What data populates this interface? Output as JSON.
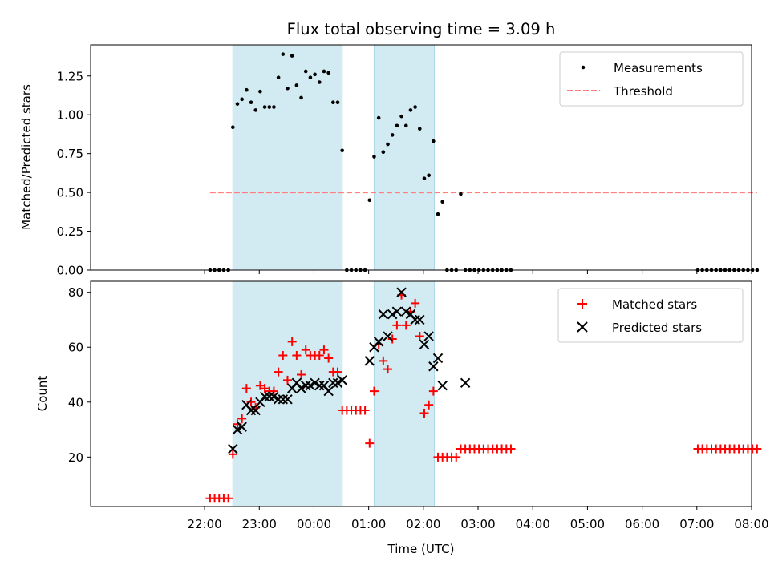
{
  "title": "Flux total observing time = 3.09 h",
  "colors": {
    "band": "#add8e6",
    "matched": "#ff0000",
    "predicted": "#000000",
    "threshold": "#ff7f7f",
    "dots": "#000000"
  },
  "chart_data": [
    {
      "type": "scatter",
      "panel": "top",
      "ylabel": "Matched/Predicted stars",
      "xlabel": "",
      "ylim": [
        0,
        1.45
      ],
      "yticks": [
        0.0,
        0.25,
        0.5,
        0.75,
        1.0,
        1.25
      ],
      "ytick_labels": [
        "0.00",
        "0.25",
        "0.50",
        "0.75",
        "1.00",
        "1.25"
      ],
      "legend": {
        "placement": "top-right",
        "entries": [
          "Measurements",
          "Threshold"
        ]
      },
      "bands": [
        [
          "22:31",
          "00:31"
        ],
        [
          "01:06",
          "02:12"
        ]
      ],
      "threshold": {
        "name": "Threshold",
        "value": 0.5,
        "x_range": [
          "22:06",
          "08:06"
        ]
      },
      "series": [
        {
          "name": "Measurements",
          "x": [
            "22:06",
            "22:11",
            "22:16",
            "22:21",
            "22:26",
            "22:31",
            "22:36",
            "22:41",
            "22:46",
            "22:51",
            "22:56",
            "23:01",
            "23:06",
            "23:11",
            "23:16",
            "23:21",
            "23:26",
            "23:31",
            "23:36",
            "23:41",
            "23:46",
            "23:51",
            "23:56",
            "00:01",
            "00:06",
            "00:11",
            "00:16",
            "00:21",
            "00:26",
            "00:31",
            "00:36",
            "00:41",
            "00:46",
            "00:51",
            "00:56",
            "01:01",
            "01:06",
            "01:11",
            "01:16",
            "01:21",
            "01:26",
            "01:31",
            "01:36",
            "01:41",
            "01:46",
            "01:51",
            "01:56",
            "02:01",
            "02:06",
            "02:11",
            "02:16",
            "02:21",
            "02:26",
            "02:31",
            "02:36",
            "02:41",
            "02:46",
            "02:51",
            "02:56",
            "03:01",
            "03:06",
            "03:11",
            "03:16",
            "03:21",
            "03:26",
            "03:31",
            "03:36",
            "07:01",
            "07:06",
            "07:11",
            "07:16",
            "07:21",
            "07:26",
            "07:31",
            "07:36",
            "07:41",
            "07:46",
            "07:51",
            "07:56",
            "08:01",
            "08:06"
          ],
          "values": [
            0,
            0,
            0,
            0,
            0,
            0.92,
            1.07,
            1.1,
            1.16,
            1.08,
            1.03,
            1.15,
            1.05,
            1.05,
            1.05,
            1.24,
            1.39,
            1.17,
            1.38,
            1.19,
            1.11,
            1.28,
            1.24,
            1.26,
            1.21,
            1.28,
            1.27,
            1.08,
            1.08,
            0.77,
            0,
            0,
            0,
            0,
            0,
            0.45,
            0.73,
            0.98,
            0.76,
            0.81,
            0.87,
            0.93,
            0.99,
            0.93,
            1.03,
            1.05,
            0.91,
            0.59,
            0.61,
            0.83,
            0.36,
            0.44,
            0,
            0,
            0,
            0.49,
            0,
            0,
            0,
            0,
            0,
            0,
            0,
            0,
            0,
            0,
            0,
            0,
            0,
            0,
            0,
            0,
            0,
            0,
            0,
            0,
            0,
            0,
            0,
            0,
            0
          ]
        }
      ]
    },
    {
      "type": "scatter",
      "panel": "bottom",
      "ylabel": "Count",
      "xlabel": "Time (UTC)",
      "ylim": [
        2,
        84
      ],
      "yticks": [
        20,
        40,
        60,
        80
      ],
      "ytick_labels": [
        "20",
        "40",
        "60",
        "80"
      ],
      "xticks": [
        "22:00",
        "23:00",
        "00:00",
        "01:00",
        "02:00",
        "03:00",
        "04:00",
        "05:00",
        "06:00",
        "07:00",
        "08:00"
      ],
      "legend": {
        "placement": "top-right",
        "entries": [
          "Matched stars",
          "Predicted stars"
        ]
      },
      "bands": [
        [
          "22:31",
          "00:31"
        ],
        [
          "01:06",
          "02:12"
        ]
      ],
      "series": [
        {
          "name": "Matched stars",
          "marker": "plus",
          "x": [
            "22:06",
            "22:11",
            "22:16",
            "22:21",
            "22:26",
            "22:31",
            "22:36",
            "22:41",
            "22:46",
            "22:51",
            "22:56",
            "23:01",
            "23:06",
            "23:11",
            "23:16",
            "23:21",
            "23:26",
            "23:31",
            "23:36",
            "23:41",
            "23:46",
            "23:51",
            "23:56",
            "00:01",
            "00:06",
            "00:11",
            "00:16",
            "00:21",
            "00:26",
            "00:31",
            "00:36",
            "00:41",
            "00:46",
            "00:51",
            "00:56",
            "01:01",
            "01:06",
            "01:11",
            "01:16",
            "01:21",
            "01:26",
            "01:31",
            "01:36",
            "01:41",
            "01:46",
            "01:51",
            "01:56",
            "02:01",
            "02:06",
            "02:11",
            "02:16",
            "02:21",
            "02:26",
            "02:31",
            "02:36",
            "02:41",
            "02:46",
            "02:51",
            "02:56",
            "03:01",
            "03:06",
            "03:11",
            "03:16",
            "03:21",
            "03:26",
            "03:31",
            "03:36",
            "07:01",
            "07:06",
            "07:11",
            "07:16",
            "07:21",
            "07:26",
            "07:31",
            "07:36",
            "07:41",
            "07:46",
            "07:51",
            "07:56",
            "08:01",
            "08:06"
          ],
          "values": [
            5,
            5,
            5,
            5,
            5,
            21,
            32,
            34,
            45,
            40,
            38,
            46,
            45,
            44,
            44,
            51,
            57,
            48,
            62,
            57,
            50,
            59,
            57,
            57,
            57,
            59,
            56,
            51,
            51,
            37,
            37,
            37,
            37,
            37,
            37,
            25,
            44,
            61,
            55,
            52,
            63,
            68,
            79,
            68,
            73,
            76,
            64,
            36,
            39,
            44,
            20,
            20,
            20,
            20,
            20,
            23,
            23,
            23,
            23,
            23,
            23,
            23,
            23,
            23,
            23,
            23,
            23,
            23,
            23,
            23,
            23,
            23,
            23,
            23,
            23,
            23,
            23,
            23,
            23,
            23,
            23
          ]
        },
        {
          "name": "Predicted stars",
          "marker": "x",
          "x": [
            "22:31",
            "22:36",
            "22:41",
            "22:46",
            "22:51",
            "22:56",
            "23:01",
            "23:06",
            "23:11",
            "23:16",
            "23:21",
            "23:26",
            "23:31",
            "23:36",
            "23:41",
            "23:46",
            "23:51",
            "23:56",
            "00:01",
            "00:06",
            "00:11",
            "00:16",
            "00:21",
            "00:26",
            "00:31",
            "01:01",
            "01:06",
            "01:11",
            "01:16",
            "01:21",
            "01:26",
            "01:31",
            "01:36",
            "01:41",
            "01:46",
            "01:51",
            "01:56",
            "02:01",
            "02:06",
            "02:11",
            "02:16",
            "02:21",
            "02:46"
          ],
          "values": [
            23,
            30,
            31,
            39,
            37,
            37,
            40,
            42,
            42,
            42,
            41,
            41,
            41,
            45,
            47,
            45,
            46,
            46,
            47,
            46,
            46,
            44,
            47,
            47,
            48,
            55,
            60,
            62,
            72,
            64,
            72,
            73,
            80,
            73,
            72,
            70,
            70,
            61,
            64,
            53,
            56,
            46,
            47
          ]
        }
      ]
    }
  ]
}
